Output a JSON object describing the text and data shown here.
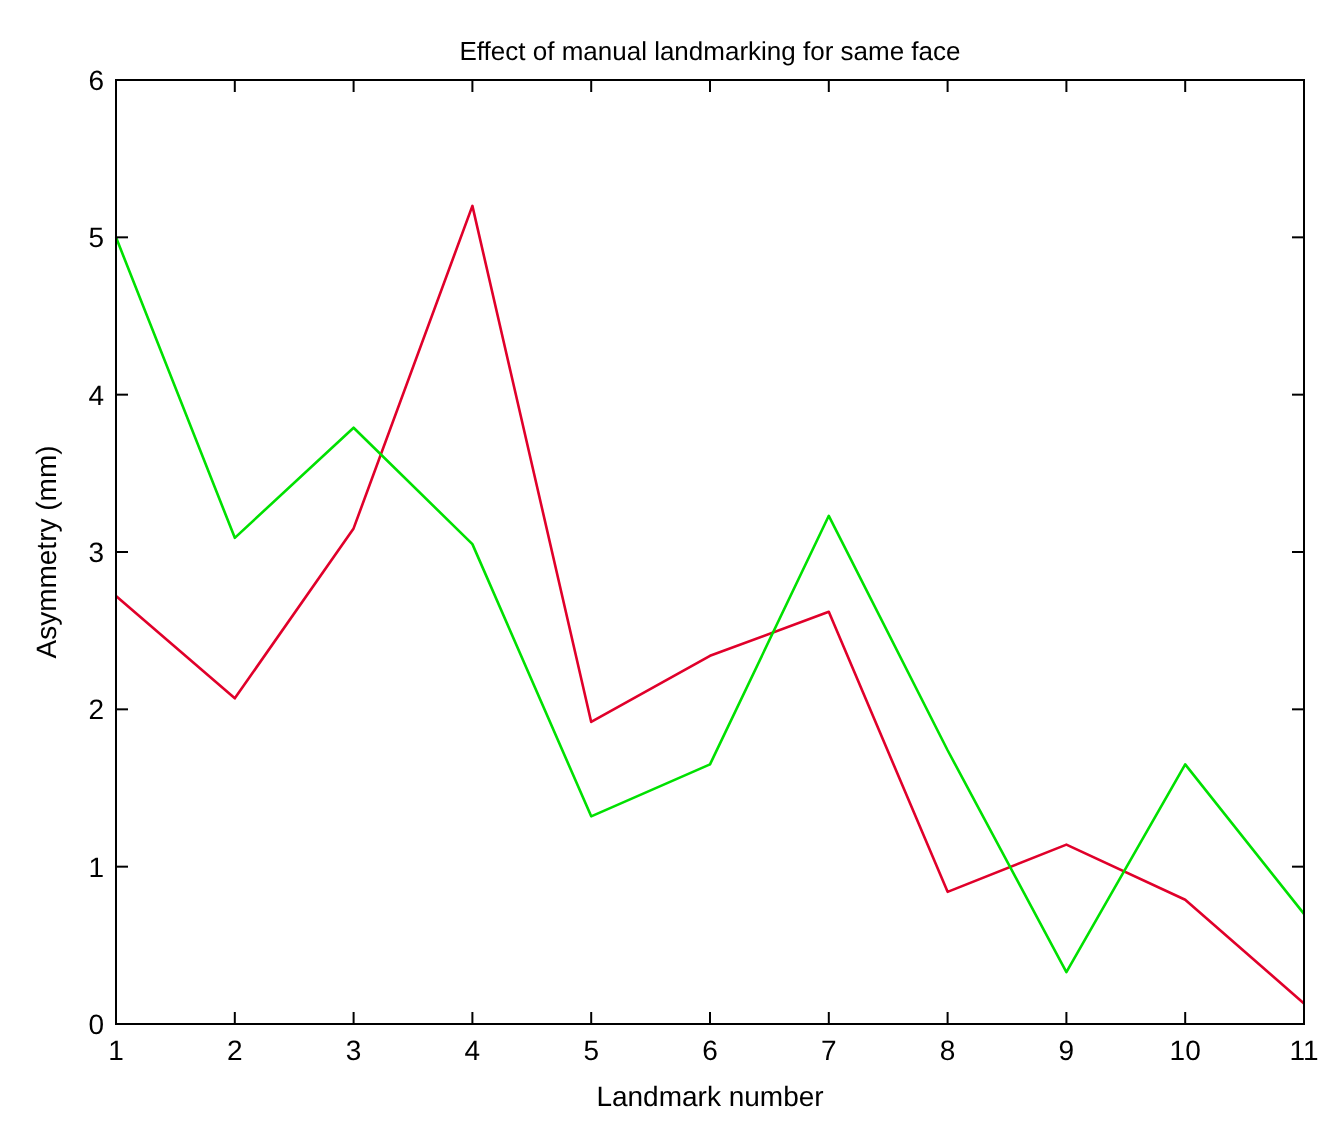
{
  "chart_data": {
    "type": "line",
    "title": "Effect of manual landmarking for same face",
    "xlabel": "Landmark number",
    "ylabel": "Asymmetry (mm)",
    "x": [
      1,
      2,
      3,
      4,
      5,
      6,
      7,
      8,
      9,
      10,
      11
    ],
    "series": [
      {
        "color": "#e0002a",
        "values": [
          2.72,
          2.07,
          3.15,
          5.2,
          1.92,
          2.34,
          2.62,
          0.84,
          1.14,
          0.79,
          0.13
        ]
      },
      {
        "color": "#00e000",
        "values": [
          5.0,
          3.09,
          3.79,
          3.05,
          1.32,
          1.65,
          3.23,
          1.74,
          0.33,
          1.65,
          0.7
        ]
      }
    ],
    "xlim": [
      1,
      11
    ],
    "xticks": [
      1,
      2,
      3,
      4,
      5,
      6,
      7,
      8,
      9,
      10,
      11
    ],
    "ylim": [
      0,
      6
    ],
    "yticks": [
      0,
      1,
      2,
      3,
      4,
      5,
      6
    ],
    "grid": false,
    "marker": "none",
    "line_style": "solid"
  }
}
